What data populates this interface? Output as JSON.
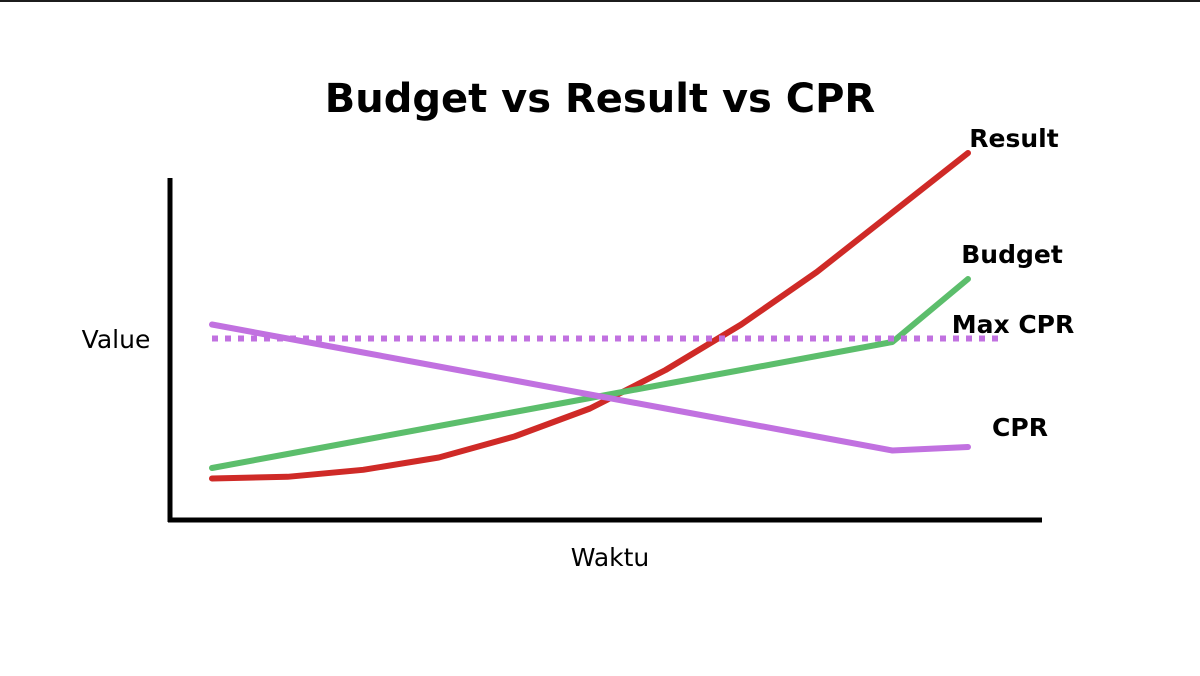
{
  "chart_data": {
    "type": "line",
    "title": "Budget vs Result vs CPR",
    "xlabel": "Waktu",
    "ylabel": "Value",
    "x_ticks": [],
    "y_ticks": [],
    "grid": false,
    "x": [
      0,
      1,
      2,
      3,
      4,
      5,
      6,
      7,
      8,
      9,
      10
    ],
    "xlim": [
      0,
      10
    ],
    "ylim": [
      0,
      10
    ],
    "series": [
      {
        "name": "Result",
        "color": "#cf2a27",
        "dashed": false,
        "values": [
          0.9,
          0.95,
          1.15,
          1.5,
          2.1,
          2.9,
          4.0,
          5.3,
          6.8,
          8.5,
          10.2
        ]
      },
      {
        "name": "Budget",
        "color": "#5cbe6c",
        "dashed": false,
        "values": [
          1.2,
          1.6,
          2.0,
          2.4,
          2.8,
          3.2,
          3.6,
          4.0,
          4.4,
          4.8,
          6.6
        ]
      },
      {
        "name": "Max CPR",
        "color": "#c171e0",
        "dashed": true,
        "values": [
          4.9,
          4.9,
          4.9,
          4.9,
          4.9,
          4.9,
          4.9,
          4.9,
          4.9,
          4.9,
          4.9
        ]
      },
      {
        "name": "CPR",
        "color": "#c171e0",
        "dashed": false,
        "values": [
          5.3,
          4.9,
          4.5,
          4.1,
          3.7,
          3.3,
          2.9,
          2.5,
          2.1,
          1.7,
          1.8
        ]
      }
    ]
  }
}
